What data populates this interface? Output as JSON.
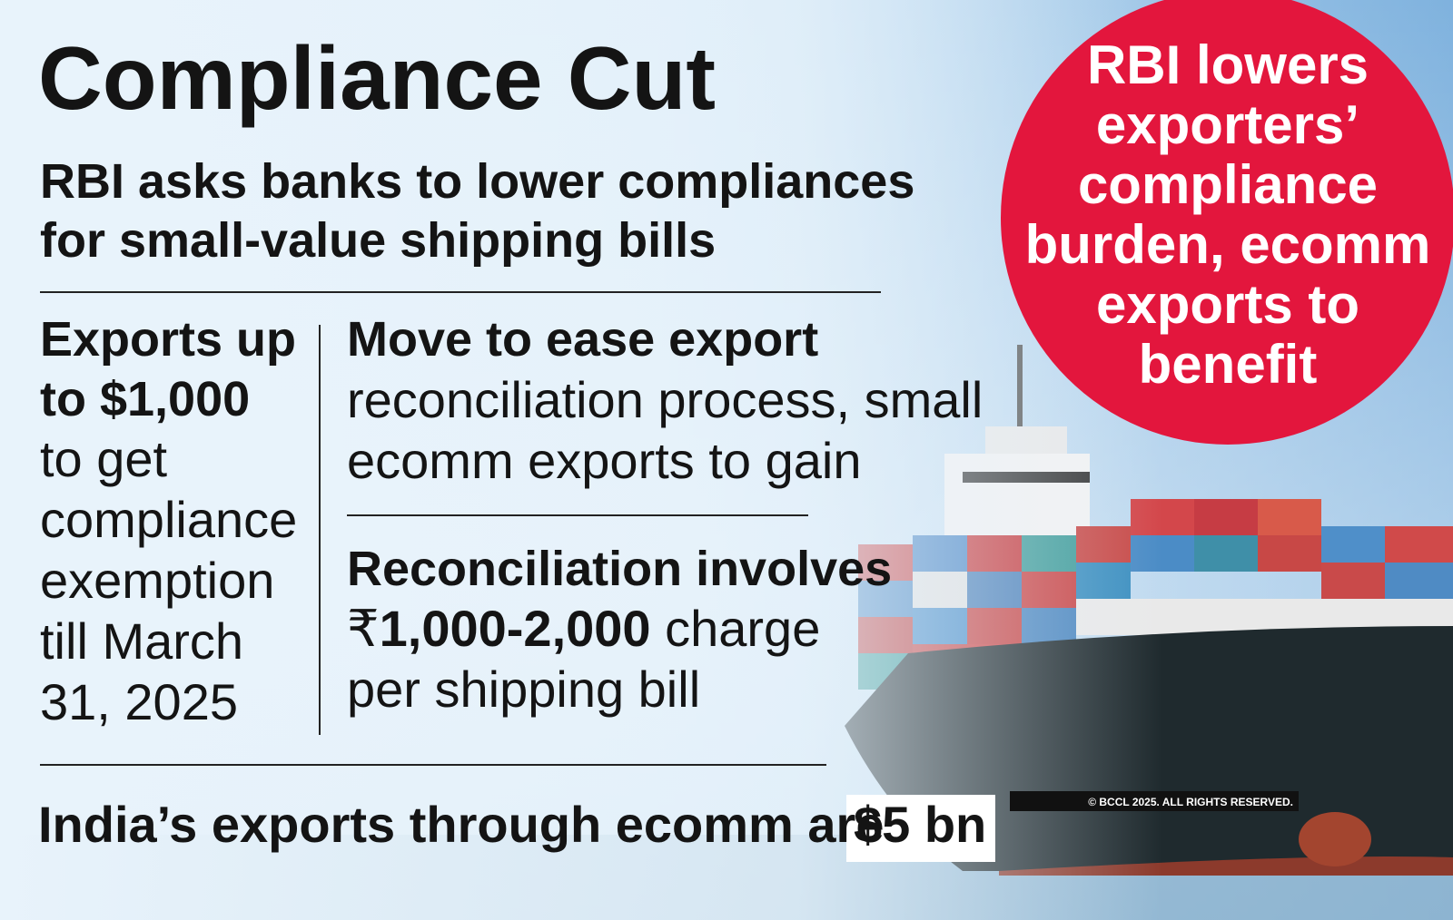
{
  "title": "Compliance Cut",
  "subtitle": {
    "lines": [
      "RBI asks banks to lower compliances",
      "for small-value shipping bills"
    ]
  },
  "left_column": {
    "bold_lines": [
      "Exports up",
      "to $1,000"
    ],
    "lines": [
      "to get",
      "compliance",
      "exemption",
      "till March",
      "31, 2025"
    ]
  },
  "right_column": {
    "item_1": {
      "bold": "Move to ease export",
      "lines": [
        "reconciliation process, small",
        "ecomm exports to gain"
      ]
    },
    "item_2": {
      "bold": "Reconciliation involves",
      "line_1": {
        "prefix": "₹",
        "amount": "1,000-2,000",
        "suffix": " charge"
      },
      "line_2": "per shipping bill"
    }
  },
  "footer": {
    "text": "India’s exports through ecomm are",
    "highlight": "$5 bn"
  },
  "badge": {
    "lines": [
      "RBI lowers",
      "exporters’",
      "compliance",
      "burden, ecomm",
      "exports to",
      "benefit"
    ]
  },
  "copyright": "© BCCL 2025. ALL RIGHTS RESERVED."
}
